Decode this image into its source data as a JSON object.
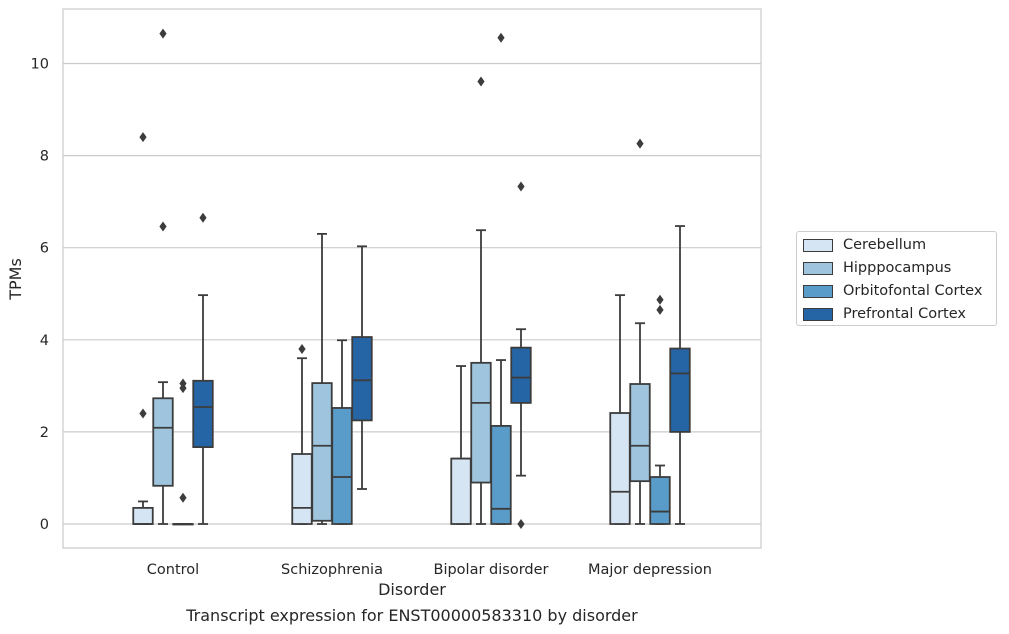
{
  "chart_data": {
    "type": "box",
    "title": "",
    "xlabel": "Disorder",
    "ylabel": "TPMs",
    "ylim": [
      -0.5,
      11.2
    ],
    "yticks": [
      0,
      2,
      4,
      6,
      8,
      10
    ],
    "grid": "horizontal",
    "legend_position": "right-outside",
    "categories": [
      "Control",
      "Schizophrenia",
      "Bipolar disorder",
      "Major depression"
    ],
    "series": [
      {
        "name": "Cerebellum",
        "color": "#d6e5f3",
        "boxes": [
          {
            "low": 0,
            "q1": 0,
            "median": 0,
            "q3": 0.35,
            "high": 0.49,
            "outliers": [
              2.4,
              8.4
            ]
          },
          {
            "low": 0,
            "q1": 0,
            "median": 0.35,
            "q3": 1.52,
            "high": 3.6,
            "outliers": [
              3.8
            ]
          },
          {
            "low": 0,
            "q1": 0,
            "median": 1.42,
            "q3": 1.42,
            "high": 3.43,
            "outliers": []
          },
          {
            "low": 0,
            "q1": 0,
            "median": 0.7,
            "q3": 2.41,
            "high": 4.97,
            "outliers": []
          }
        ]
      },
      {
        "name": "Hipppocampus",
        "color": "#9fc5de",
        "boxes": [
          {
            "low": 0,
            "q1": 0.83,
            "median": 2.09,
            "q3": 2.73,
            "high": 3.08,
            "outliers": [
              6.46,
              10.65
            ]
          },
          {
            "low": 0,
            "q1": 0.07,
            "median": 1.7,
            "q3": 3.06,
            "high": 6.3,
            "outliers": []
          },
          {
            "low": 0,
            "q1": 0.9,
            "median": 2.63,
            "q3": 3.5,
            "high": 6.38,
            "outliers": [
              9.61
            ]
          },
          {
            "low": 0,
            "q1": 0.93,
            "median": 1.7,
            "q3": 3.04,
            "high": 4.36,
            "outliers": [
              8.26
            ]
          }
        ]
      },
      {
        "name": "Orbitofontal Cortex",
        "color": "#5a9cc9",
        "boxes": [
          {
            "low": 0,
            "q1": 0,
            "median": 0,
            "q3": 0,
            "high": 0,
            "outliers": [
              0.57,
              2.95,
              3.05
            ]
          },
          {
            "low": 0,
            "q1": 0,
            "median": 1.02,
            "q3": 2.52,
            "high": 3.99,
            "outliers": []
          },
          {
            "low": 0,
            "q1": 0,
            "median": 0.33,
            "q3": 2.13,
            "high": 3.56,
            "outliers": [
              10.56
            ]
          },
          {
            "low": 0,
            "q1": 0,
            "median": 0.27,
            "q3": 1.02,
            "high": 1.27,
            "outliers": [
              4.65,
              4.87
            ]
          }
        ]
      },
      {
        "name": "Prefrontal Cortex",
        "color": "#2565a6",
        "boxes": [
          {
            "low": 0,
            "q1": 1.67,
            "median": 2.54,
            "q3": 3.11,
            "high": 4.97,
            "outliers": [
              6.65
            ]
          },
          {
            "low": 0.76,
            "q1": 2.25,
            "median": 3.12,
            "q3": 4.06,
            "high": 6.03,
            "outliers": []
          },
          {
            "low": 1.05,
            "q1": 2.63,
            "median": 3.18,
            "q3": 3.83,
            "high": 4.23,
            "outliers": [
              0,
              7.33
            ]
          },
          {
            "low": 0,
            "q1": 2.0,
            "median": 3.27,
            "q3": 3.81,
            "high": 6.47,
            "outliers": []
          }
        ]
      }
    ]
  },
  "caption": "Transcript expression for ENST00000583310 by disorder"
}
